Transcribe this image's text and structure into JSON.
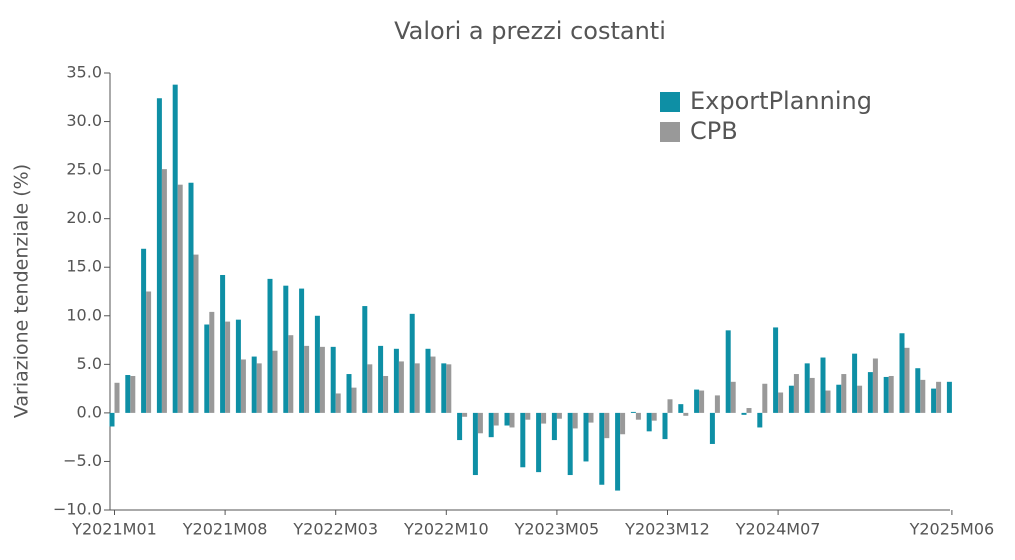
{
  "chart_data": {
    "type": "bar",
    "title": "Valori a prezzi costanti",
    "y_label": "Variazione tendenziale (%)",
    "categories": [
      "Y2021M01",
      null,
      null,
      null,
      null,
      null,
      null,
      "Y2021M08",
      null,
      null,
      null,
      null,
      null,
      null,
      "Y2022M03",
      null,
      null,
      null,
      null,
      null,
      null,
      "Y2022M10",
      null,
      null,
      null,
      null,
      null,
      null,
      "Y2023M05",
      null,
      null,
      null,
      null,
      null,
      null,
      "Y2023M12",
      null,
      null,
      null,
      null,
      null,
      null,
      "Y2024M07",
      null,
      null,
      null,
      null,
      null,
      null,
      null,
      null,
      null,
      null,
      "Y2025M06"
    ],
    "series": [
      {
        "name": "ExportPlanning",
        "color": "#0e8fa5",
        "values": [
          -1.4,
          3.9,
          16.9,
          32.4,
          33.8,
          23.7,
          9.1,
          14.2,
          9.6,
          5.8,
          13.8,
          13.1,
          12.8,
          10.0,
          6.8,
          4.0,
          11.0,
          6.9,
          6.6,
          10.2,
          6.6,
          5.1,
          -2.8,
          -6.4,
          -2.5,
          -1.3,
          -5.6,
          -6.1,
          -2.8,
          -6.4,
          -5.0,
          -7.4,
          -8.0,
          0.1,
          -1.9,
          -2.7,
          0.9,
          2.4,
          -3.2,
          8.5,
          -0.2,
          -1.5,
          8.8,
          2.8,
          5.1,
          5.7,
          2.9,
          6.1,
          4.2,
          3.7,
          8.2,
          4.6,
          2.5,
          3.2
        ]
      },
      {
        "name": "CPB",
        "color": "#999999",
        "values": [
          3.1,
          3.8,
          12.5,
          25.1,
          23.5,
          16.3,
          10.4,
          9.4,
          5.5,
          5.1,
          6.4,
          8.0,
          6.9,
          6.8,
          2.0,
          2.6,
          5.0,
          3.8,
          5.3,
          5.1,
          5.8,
          5.0,
          -0.4,
          -2.1,
          -1.3,
          -1.5,
          -0.7,
          -1.1,
          -0.6,
          -1.6,
          -1.0,
          -2.6,
          -2.2,
          -0.7,
          -0.8,
          1.4,
          -0.3,
          2.3,
          1.8,
          3.2,
          0.5,
          3.0,
          2.1,
          4.0,
          3.6,
          2.3,
          4.0,
          2.8,
          5.6,
          3.8,
          6.7,
          3.4,
          3.2,
          null
        ]
      }
    ],
    "ylim": [
      -10,
      35
    ],
    "yticks": [
      {
        "value": -10,
        "label": "−10.0"
      },
      {
        "value": -5,
        "label": "−5.0"
      },
      {
        "value": 0,
        "label": "0.0"
      },
      {
        "value": 5,
        "label": "5.0"
      },
      {
        "value": 10,
        "label": "10.0"
      },
      {
        "value": 15,
        "label": "15.0"
      },
      {
        "value": 20,
        "label": "20.0"
      },
      {
        "value": 25,
        "label": "25.0"
      },
      {
        "value": 30,
        "label": "30.0"
      },
      {
        "value": 35,
        "label": "35.0"
      }
    ],
    "legend_position": "upper right"
  }
}
